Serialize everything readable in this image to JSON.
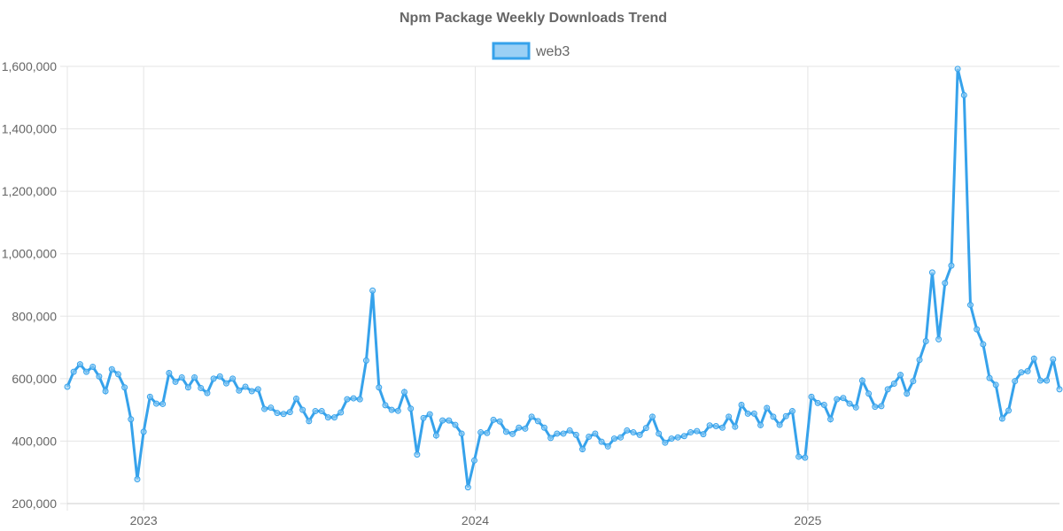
{
  "chart_data": {
    "type": "line",
    "title": "Npm Package Weekly Downloads Trend",
    "xlabel": "",
    "ylabel": "",
    "ylim": [
      200000,
      1600000
    ],
    "yticks": [
      "200,000",
      "400,000",
      "600,000",
      "800,000",
      "1,000,000",
      "1,200,000",
      "1,400,000",
      "1,600,000"
    ],
    "ytick_values": [
      200000,
      400000,
      600000,
      800000,
      1000000,
      1200000,
      1400000,
      1600000
    ],
    "xticks": [
      "2023",
      "2024",
      "2025"
    ],
    "xtick_values": [
      "2023-01-01",
      "2024-01-01",
      "2025-01-01"
    ],
    "grid": true,
    "legend": "top",
    "colors": {
      "line": "#36a2eb",
      "fill": "#9ad0f5"
    },
    "x": [
      "2022-10-09",
      "2022-10-16",
      "2022-10-23",
      "2022-10-30",
      "2022-11-06",
      "2022-11-13",
      "2022-11-20",
      "2022-11-27",
      "2022-12-04",
      "2022-12-11",
      "2022-12-18",
      "2022-12-25",
      "2023-01-01",
      "2023-01-08",
      "2023-01-15",
      "2023-01-22",
      "2023-01-29",
      "2023-02-05",
      "2023-02-12",
      "2023-02-19",
      "2023-02-26",
      "2023-03-05",
      "2023-03-12",
      "2023-03-19",
      "2023-03-26",
      "2023-04-02",
      "2023-04-09",
      "2023-04-16",
      "2023-04-23",
      "2023-04-30",
      "2023-05-07",
      "2023-05-14",
      "2023-05-21",
      "2023-05-28",
      "2023-06-04",
      "2023-06-11",
      "2023-06-18",
      "2023-06-25",
      "2023-07-02",
      "2023-07-09",
      "2023-07-16",
      "2023-07-23",
      "2023-07-30",
      "2023-08-06",
      "2023-08-13",
      "2023-08-20",
      "2023-08-27",
      "2023-09-03",
      "2023-09-10",
      "2023-09-17",
      "2023-09-24",
      "2023-10-01",
      "2023-10-08",
      "2023-10-15",
      "2023-10-22",
      "2023-10-29",
      "2023-11-05",
      "2023-11-12",
      "2023-11-19",
      "2023-11-26",
      "2023-12-03",
      "2023-12-10",
      "2023-12-17",
      "2023-12-24",
      "2023-12-31",
      "2024-01-07",
      "2024-01-14",
      "2024-01-21",
      "2024-01-28",
      "2024-02-04",
      "2024-02-11",
      "2024-02-18",
      "2024-02-25",
      "2024-03-03",
      "2024-03-10",
      "2024-03-17",
      "2024-03-24",
      "2024-03-31",
      "2024-04-07",
      "2024-04-14",
      "2024-04-21",
      "2024-04-28",
      "2024-05-05",
      "2024-05-12",
      "2024-05-19",
      "2024-05-26",
      "2024-06-02",
      "2024-06-09",
      "2024-06-16",
      "2024-06-23",
      "2024-06-30",
      "2024-07-07",
      "2024-07-14",
      "2024-07-21",
      "2024-07-28",
      "2024-08-04",
      "2024-08-11",
      "2024-08-18",
      "2024-08-25",
      "2024-09-01",
      "2024-09-08",
      "2024-09-15",
      "2024-09-22",
      "2024-09-29",
      "2024-10-06",
      "2024-10-13",
      "2024-10-20",
      "2024-10-27",
      "2024-11-03",
      "2024-11-10",
      "2024-11-17",
      "2024-11-24",
      "2024-12-01",
      "2024-12-08",
      "2024-12-15",
      "2024-12-22",
      "2024-12-29",
      "2025-01-05",
      "2025-01-12",
      "2025-01-19",
      "2025-01-26",
      "2025-02-02",
      "2025-02-09",
      "2025-02-16",
      "2025-02-23",
      "2025-03-02",
      "2025-03-09",
      "2025-03-16",
      "2025-03-23",
      "2025-03-30",
      "2025-04-06",
      "2025-04-13",
      "2025-04-20",
      "2025-04-27",
      "2025-05-04",
      "2025-05-11",
      "2025-05-18",
      "2025-05-25",
      "2025-06-01",
      "2025-06-08",
      "2025-06-15",
      "2025-06-22",
      "2025-06-29",
      "2025-07-06",
      "2025-07-13",
      "2025-07-20",
      "2025-07-27",
      "2025-08-03",
      "2025-08-10",
      "2025-08-17",
      "2025-08-24",
      "2025-08-31",
      "2025-09-07",
      "2025-09-14",
      "2025-09-21",
      "2025-09-28",
      "2025-10-05"
    ],
    "series": [
      {
        "name": "web3",
        "values": [
          574000,
          622000,
          646000,
          622000,
          638000,
          607000,
          560000,
          630000,
          614000,
          572000,
          470000,
          278000,
          430000,
          542000,
          520000,
          519000,
          618000,
          590000,
          604000,
          572000,
          604000,
          570000,
          554000,
          600000,
          607000,
          585000,
          600000,
          562000,
          574000,
          560000,
          566000,
          503000,
          507000,
          490000,
          487000,
          493000,
          536000,
          500000,
          464000,
          496000,
          496000,
          476000,
          476000,
          492000,
          534000,
          537000,
          534000,
          658000,
          882000,
          572000,
          515000,
          500000,
          497000,
          557000,
          504000,
          357000,
          474000,
          486000,
          418000,
          466000,
          466000,
          452000,
          424000,
          252000,
          338000,
          428000,
          426000,
          468000,
          463000,
          430000,
          423000,
          443000,
          440000,
          478000,
          464000,
          443000,
          410000,
          424000,
          424000,
          434000,
          420000,
          374000,
          414000,
          424000,
          398000,
          383000,
          408000,
          412000,
          434000,
          428000,
          420000,
          442000,
          478000,
          424000,
          395000,
          408000,
          412000,
          416000,
          428000,
          432000,
          422000,
          450000,
          448000,
          443000,
          478000,
          446000,
          516000,
          488000,
          488000,
          451000,
          506000,
          478000,
          452000,
          480000,
          496000,
          350000,
          347000,
          542000,
          522000,
          516000,
          470000,
          534000,
          538000,
          520000,
          508000,
          594000,
          552000,
          510000,
          512000,
          566000,
          584000,
          612000,
          552000,
          592000,
          660000,
          720000,
          940000,
          726000,
          906000,
          962000,
          1592000,
          1508000,
          836000,
          758000,
          710000,
          602000,
          580000,
          472000,
          498000,
          592000,
          620000,
          624000,
          664000,
          594000,
          594000,
          662000,
          566000
        ]
      }
    ]
  }
}
